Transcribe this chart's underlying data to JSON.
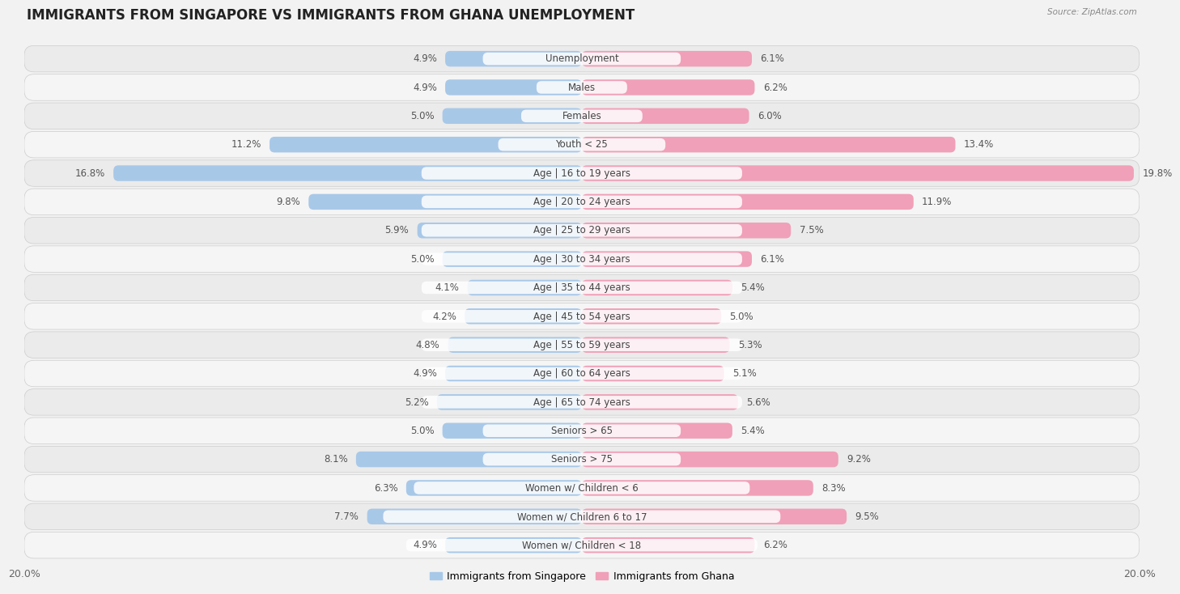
{
  "title": "IMMIGRANTS FROM SINGAPORE VS IMMIGRANTS FROM GHANA UNEMPLOYMENT",
  "source": "Source: ZipAtlas.com",
  "categories": [
    "Unemployment",
    "Males",
    "Females",
    "Youth < 25",
    "Age | 16 to 19 years",
    "Age | 20 to 24 years",
    "Age | 25 to 29 years",
    "Age | 30 to 34 years",
    "Age | 35 to 44 years",
    "Age | 45 to 54 years",
    "Age | 55 to 59 years",
    "Age | 60 to 64 years",
    "Age | 65 to 74 years",
    "Seniors > 65",
    "Seniors > 75",
    "Women w/ Children < 6",
    "Women w/ Children 6 to 17",
    "Women w/ Children < 18"
  ],
  "singapore_values": [
    4.9,
    4.9,
    5.0,
    11.2,
    16.8,
    9.8,
    5.9,
    5.0,
    4.1,
    4.2,
    4.8,
    4.9,
    5.2,
    5.0,
    8.1,
    6.3,
    7.7,
    4.9
  ],
  "ghana_values": [
    6.1,
    6.2,
    6.0,
    13.4,
    19.8,
    11.9,
    7.5,
    6.1,
    5.4,
    5.0,
    5.3,
    5.1,
    5.6,
    5.4,
    9.2,
    8.3,
    9.5,
    6.2
  ],
  "singapore_color": "#a8c8e8",
  "ghana_color": "#f0a0b8",
  "singapore_label": "Immigrants from Singapore",
  "ghana_label": "Immigrants from Ghana",
  "xlim": 20.0,
  "row_bg_light": "#ebebeb",
  "row_bg_dark": "#e0e0e0",
  "fig_bg": "#f2f2f2",
  "title_fontsize": 12,
  "label_fontsize": 8.5,
  "value_fontsize": 8.5
}
